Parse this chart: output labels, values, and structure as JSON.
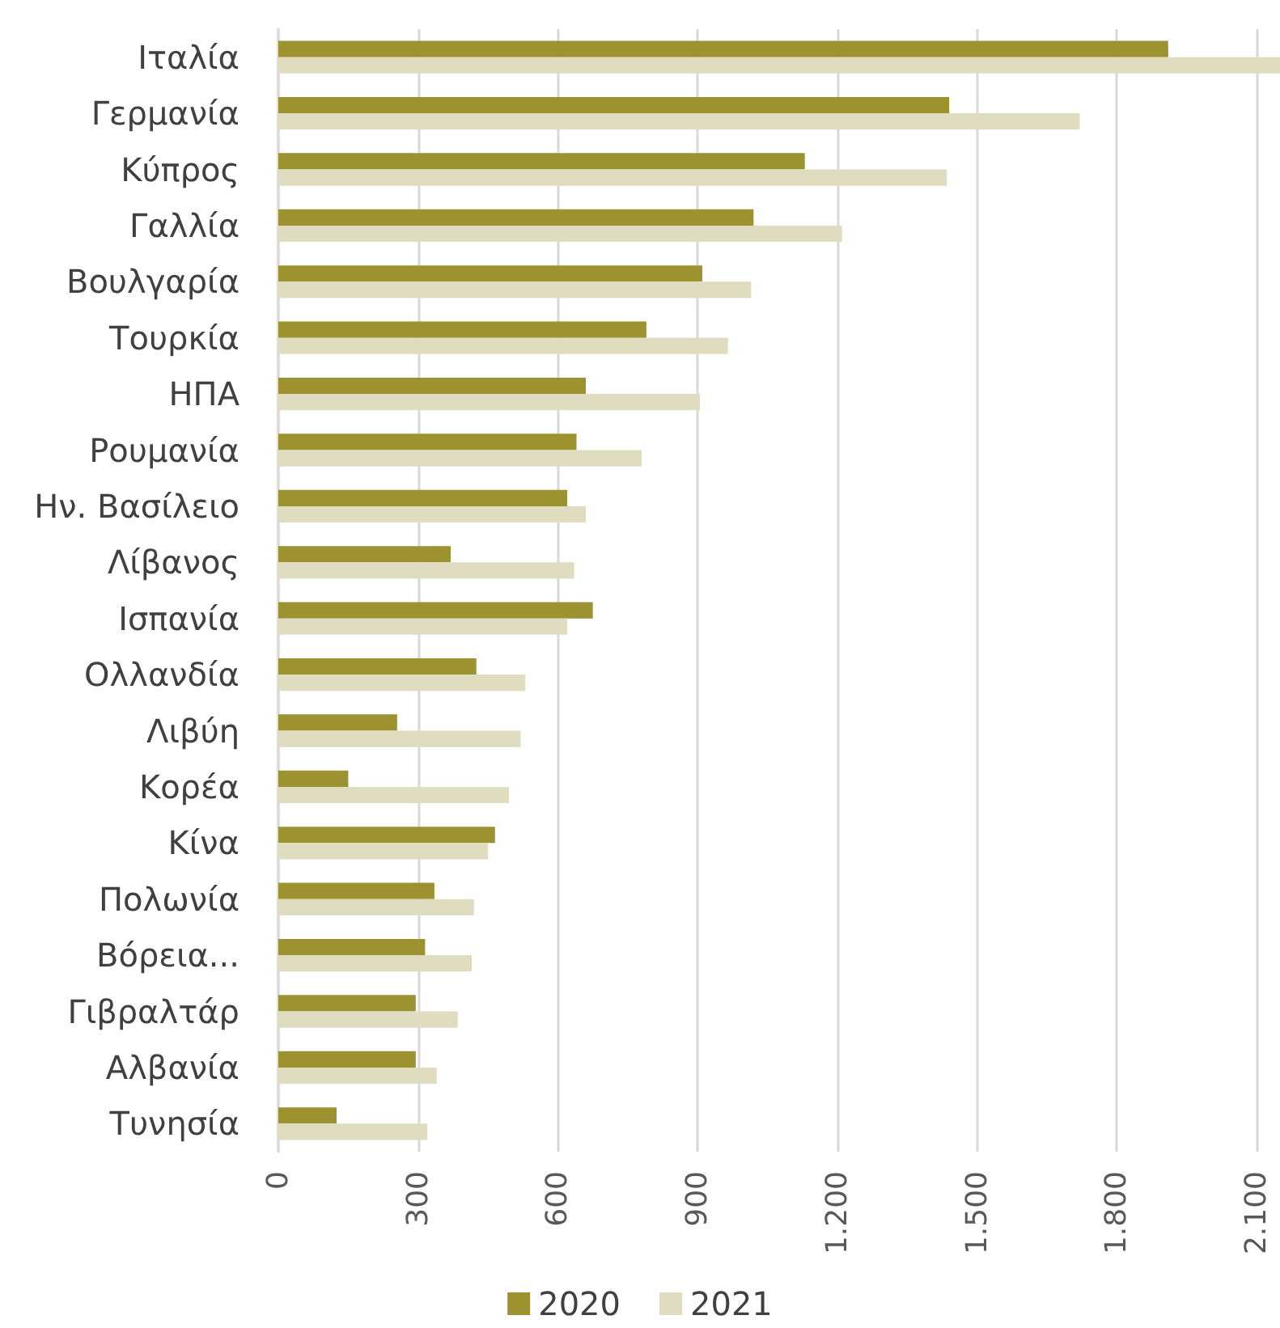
{
  "chart_data": {
    "type": "bar",
    "orientation": "horizontal",
    "categories": [
      "Ιταλία",
      "Γερμανία",
      "Κύπρος",
      "Γαλλία",
      "Βουλγαρία",
      "Τουρκία",
      "ΗΠΑ",
      "Ρουμανία",
      "Ην. Βασίλειο",
      "Λίβανος",
      "Ισπανία",
      "Ολλανδία",
      "Λιβύη",
      "Κορέα",
      "Κίνα",
      "Πολωνία",
      "Βόρεια...",
      "Γιβραλτάρ",
      "Αλβανία",
      "Τυνησία"
    ],
    "series": [
      {
        "name": "2020",
        "color": "#9c922f",
        "values": [
          1910,
          1440,
          1130,
          1020,
          910,
          790,
          660,
          640,
          620,
          370,
          675,
          425,
          255,
          150,
          465,
          335,
          315,
          295,
          295,
          125
        ]
      },
      {
        "name": "2021",
        "color": "#e0dcbf",
        "values": [
          2150,
          1720,
          1435,
          1210,
          1015,
          965,
          905,
          780,
          660,
          635,
          620,
          530,
          520,
          495,
          450,
          420,
          415,
          385,
          340,
          320
        ]
      }
    ],
    "xlim": [
      0,
      2150
    ],
    "xticks": [
      0,
      300,
      600,
      900,
      {
        "value": 1200,
        "label": "1.200"
      },
      {
        "value": 1500,
        "label": "1.500"
      },
      {
        "value": 1800,
        "label": "1.800"
      },
      {
        "value": 2100,
        "label": "2.100"
      }
    ],
    "grid": "x",
    "legend": "bottom"
  }
}
